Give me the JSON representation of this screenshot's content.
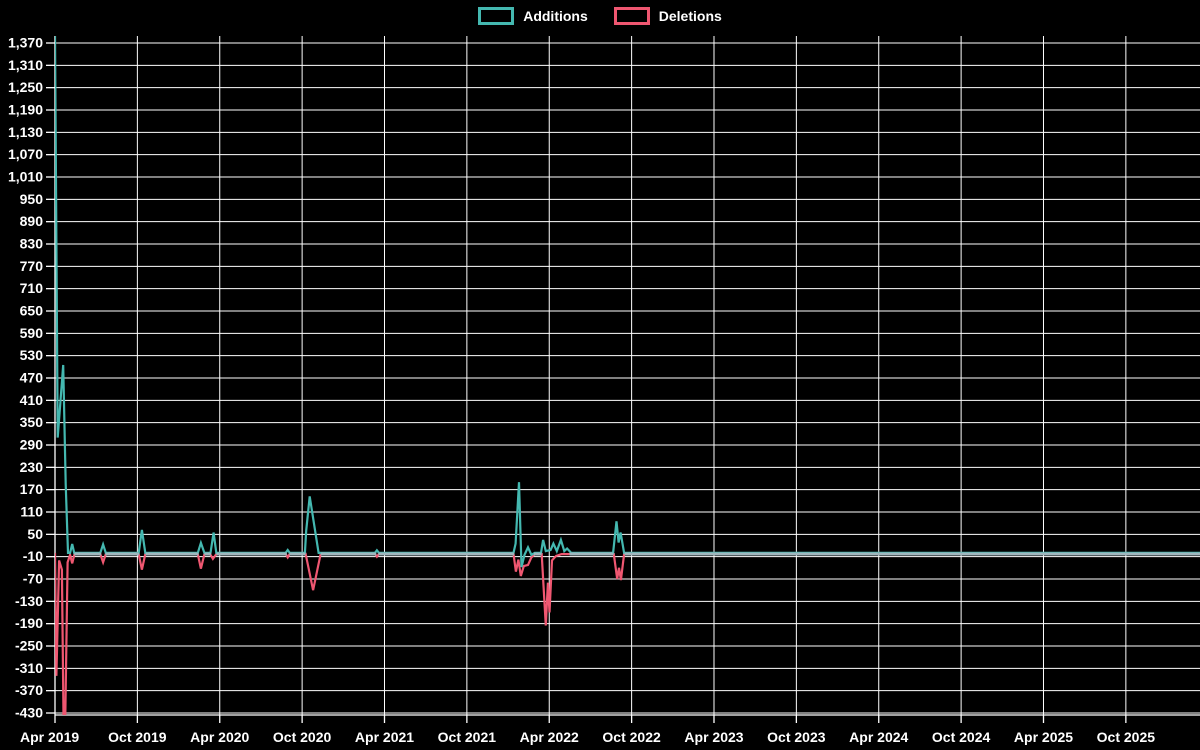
{
  "chart_data": {
    "type": "line",
    "title": "",
    "legend_position": "top-center",
    "grid": true,
    "x_tick_labels": [
      "Apr 2019",
      "Oct 2019",
      "Apr 2020",
      "Oct 2020",
      "Apr 2021",
      "Oct 2021",
      "Apr 2022",
      "Oct 2022",
      "Apr 2023",
      "Oct 2023",
      "Apr 2024",
      "Oct 2024",
      "Apr 2025",
      "Oct 2025"
    ],
    "x_tick_interval_months": 6,
    "x_domain_months": 83.4,
    "y_axis": {
      "min": -430,
      "max": 1370,
      "step": 60
    },
    "colors": {
      "background": "#000000",
      "grid": "#ffffff",
      "axis": "#ffffff",
      "text": "#ffffff",
      "baseline_overlap": "#9fb6bd"
    },
    "series": [
      {
        "name": "Additions",
        "color": "#44b8b0",
        "points": [
          [
            0,
            1390
          ],
          [
            0.2,
            310
          ],
          [
            0.6,
            505
          ],
          [
            0.78,
            185
          ],
          [
            0.95,
            0
          ],
          [
            1.1,
            0
          ],
          [
            1.25,
            24
          ],
          [
            1.4,
            0
          ],
          [
            3.3,
            0
          ],
          [
            3.5,
            23
          ],
          [
            3.7,
            0
          ],
          [
            6.1,
            0
          ],
          [
            6.33,
            62
          ],
          [
            6.58,
            0
          ],
          [
            10.4,
            0
          ],
          [
            10.63,
            27
          ],
          [
            10.88,
            0
          ],
          [
            11.33,
            0
          ],
          [
            11.55,
            55
          ],
          [
            11.75,
            0
          ],
          [
            16.8,
            0
          ],
          [
            16.95,
            8
          ],
          [
            17.1,
            0
          ],
          [
            18.2,
            0
          ],
          [
            18.3,
            60
          ],
          [
            18.55,
            152
          ],
          [
            19.2,
            0
          ],
          [
            23.3,
            0
          ],
          [
            23.45,
            7
          ],
          [
            23.6,
            0
          ],
          [
            33.4,
            0
          ],
          [
            33.55,
            25
          ],
          [
            33.8,
            190
          ],
          [
            33.98,
            -38
          ],
          [
            34.2,
            -5
          ],
          [
            34.45,
            15
          ],
          [
            34.7,
            -5
          ],
          [
            34.95,
            0
          ],
          [
            35.4,
            0
          ],
          [
            35.55,
            35
          ],
          [
            35.75,
            5
          ],
          [
            36.1,
            8
          ],
          [
            36.3,
            25
          ],
          [
            36.55,
            5
          ],
          [
            36.85,
            35
          ],
          [
            37.1,
            5
          ],
          [
            37.3,
            12
          ],
          [
            37.6,
            0
          ],
          [
            40.65,
            0
          ],
          [
            40.9,
            85
          ],
          [
            41.05,
            28
          ],
          [
            41.2,
            55
          ],
          [
            41.45,
            0
          ],
          [
            83.4,
            0
          ]
        ]
      },
      {
        "name": "Deletions",
        "color": "#ef5771",
        "points": [
          [
            0,
            0
          ],
          [
            0.1,
            -330
          ],
          [
            0.3,
            -20
          ],
          [
            0.5,
            -45
          ],
          [
            0.62,
            -440
          ],
          [
            0.75,
            -440
          ],
          [
            0.92,
            -25
          ],
          [
            1.1,
            -5
          ],
          [
            1.25,
            -28
          ],
          [
            1.42,
            -3
          ],
          [
            3.3,
            -3
          ],
          [
            3.5,
            -25
          ],
          [
            3.7,
            -3
          ],
          [
            6.1,
            -3
          ],
          [
            6.33,
            -45
          ],
          [
            6.58,
            -3
          ],
          [
            10.4,
            -3
          ],
          [
            10.63,
            -42
          ],
          [
            10.88,
            -3
          ],
          [
            11.3,
            -3
          ],
          [
            11.5,
            -16
          ],
          [
            11.75,
            -3
          ],
          [
            16.8,
            -2
          ],
          [
            16.95,
            -12
          ],
          [
            17.1,
            -2
          ],
          [
            18.25,
            -2
          ],
          [
            18.8,
            -100
          ],
          [
            19.35,
            -2
          ],
          [
            23.3,
            -2
          ],
          [
            23.45,
            -10
          ],
          [
            23.6,
            -2
          ],
          [
            33.4,
            -2
          ],
          [
            33.57,
            -50
          ],
          [
            33.75,
            -18
          ],
          [
            33.93,
            -62
          ],
          [
            34.15,
            -35
          ],
          [
            34.45,
            -32
          ],
          [
            34.7,
            -12
          ],
          [
            34.95,
            -3
          ],
          [
            35.45,
            -3
          ],
          [
            35.75,
            -195
          ],
          [
            35.9,
            -80
          ],
          [
            36.02,
            -160
          ],
          [
            36.2,
            -20
          ],
          [
            36.5,
            -8
          ],
          [
            36.9,
            -3
          ],
          [
            40.7,
            -3
          ],
          [
            40.95,
            -70
          ],
          [
            41.08,
            -40
          ],
          [
            41.22,
            -73
          ],
          [
            41.45,
            -3
          ],
          [
            83.4,
            -3
          ]
        ]
      }
    ]
  }
}
